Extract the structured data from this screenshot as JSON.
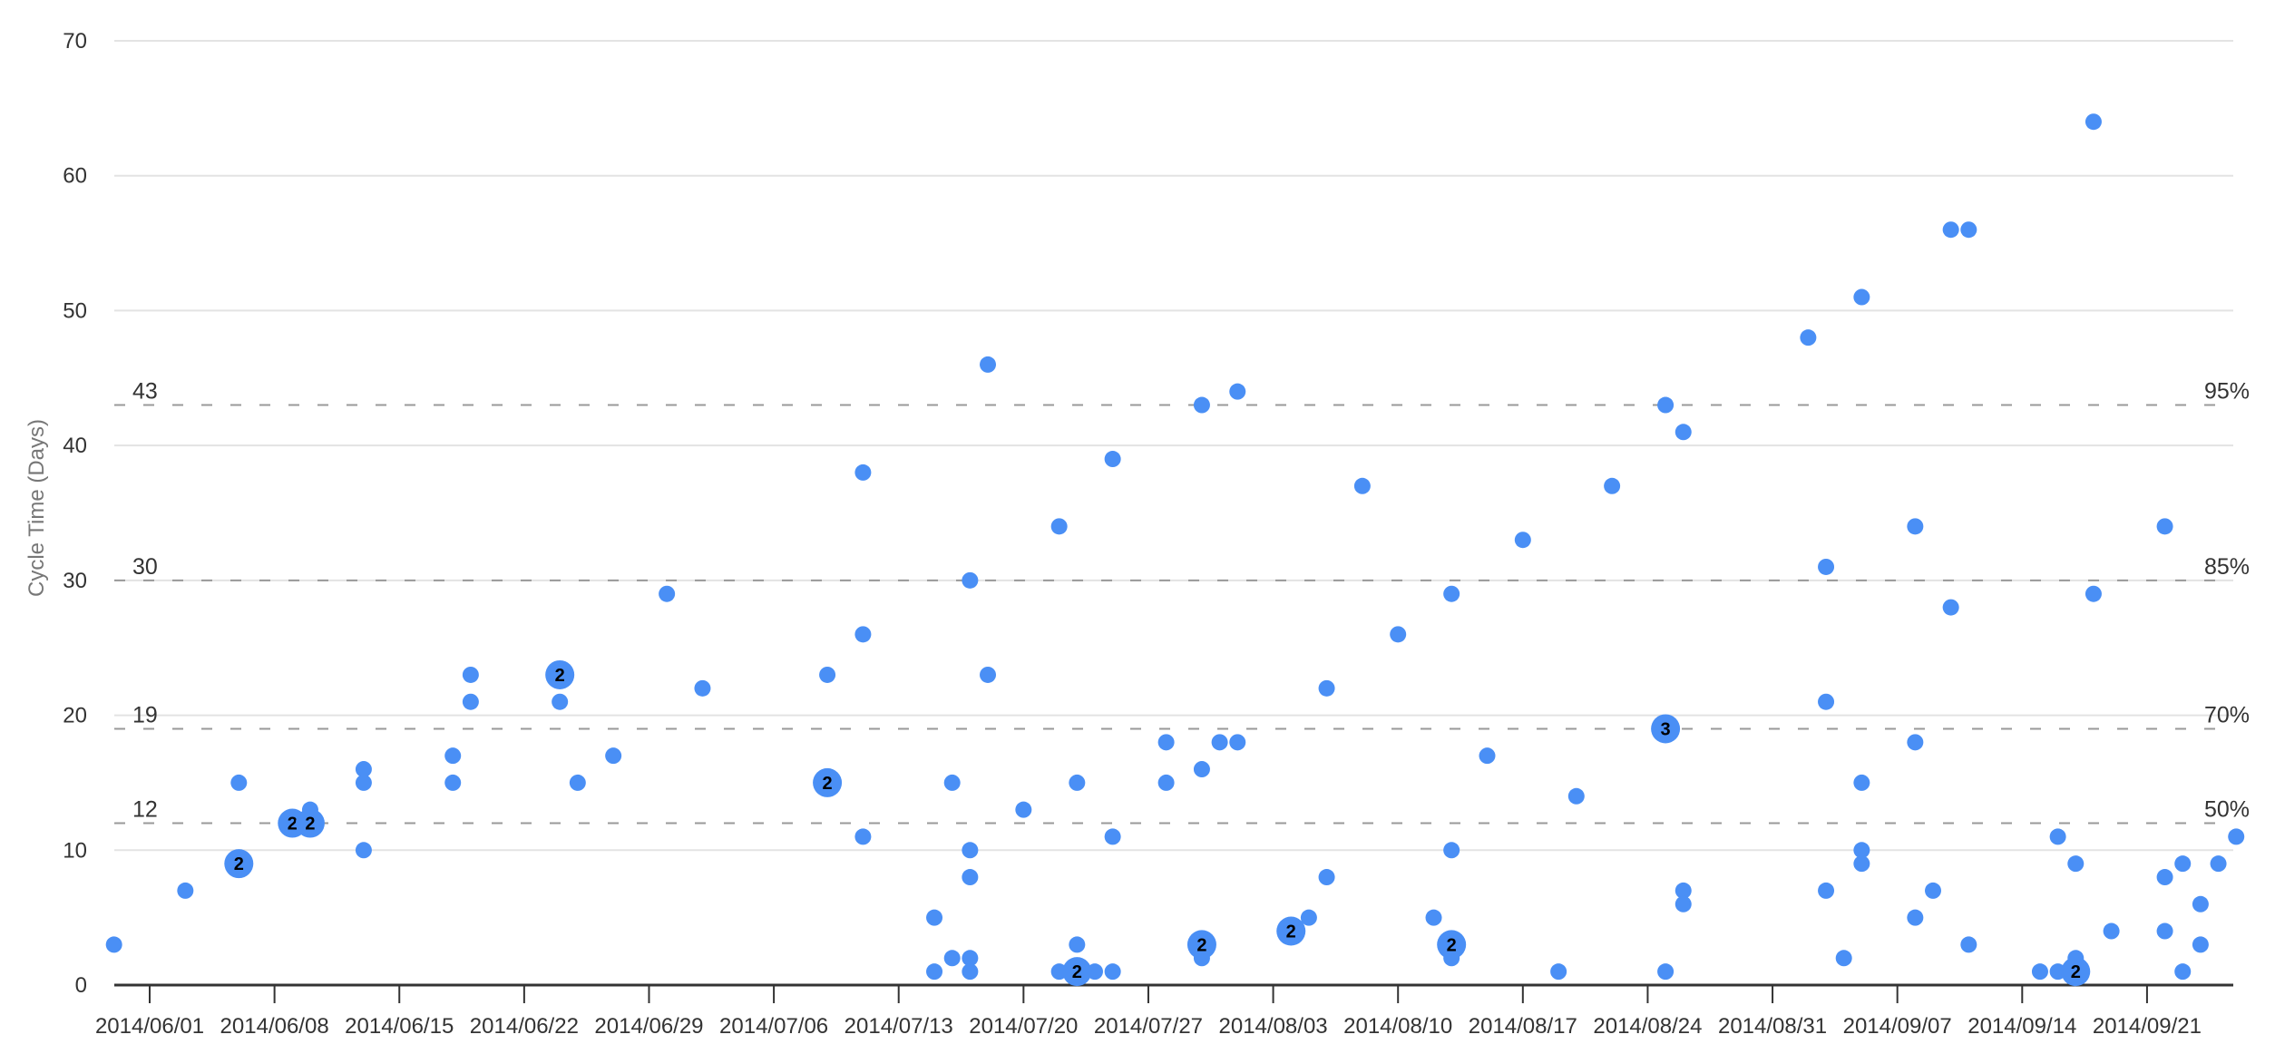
{
  "chart_data": {
    "type": "scatter",
    "title": "",
    "xlabel": "",
    "ylabel": "Cycle Time (Days)",
    "ylim": [
      0,
      70
    ],
    "y_ticks": [
      0,
      10,
      20,
      30,
      40,
      50,
      60,
      70
    ],
    "x_ticks": [
      "2014/06/01",
      "2014/06/08",
      "2014/06/15",
      "2014/06/22",
      "2014/06/29",
      "2014/07/06",
      "2014/07/13",
      "2014/07/20",
      "2014/07/27",
      "2014/08/03",
      "2014/08/10",
      "2014/08/17",
      "2014/08/24",
      "2014/08/31",
      "2014/09/07",
      "2014/09/14",
      "2014/09/21"
    ],
    "x_origin_date": "2014/06/01",
    "grid": true,
    "point_color": "#4a8ff5",
    "percentile_lines": [
      {
        "value": 43,
        "label": "95%"
      },
      {
        "value": 30,
        "label": "85%"
      },
      {
        "value": 19,
        "label": "70%"
      },
      {
        "value": 12,
        "label": "50%"
      }
    ],
    "points_note": "x = days offset from 2014/06/01, y = cycle time days, n = count of items at that point",
    "points": [
      {
        "x": -2,
        "y": 3,
        "n": 1
      },
      {
        "x": 2,
        "y": 7,
        "n": 1
      },
      {
        "x": 5,
        "y": 15,
        "n": 1
      },
      {
        "x": 5,
        "y": 9,
        "n": 2
      },
      {
        "x": 8,
        "y": 12,
        "n": 2
      },
      {
        "x": 9,
        "y": 13,
        "n": 1
      },
      {
        "x": 9,
        "y": 12,
        "n": 2
      },
      {
        "x": 12,
        "y": 16,
        "n": 1
      },
      {
        "x": 12,
        "y": 15,
        "n": 1
      },
      {
        "x": 12,
        "y": 10,
        "n": 1
      },
      {
        "x": 17,
        "y": 17,
        "n": 1
      },
      {
        "x": 17,
        "y": 15,
        "n": 1
      },
      {
        "x": 18,
        "y": 23,
        "n": 1
      },
      {
        "x": 18,
        "y": 21,
        "n": 1
      },
      {
        "x": 23,
        "y": 21,
        "n": 1
      },
      {
        "x": 23,
        "y": 23,
        "n": 2
      },
      {
        "x": 24,
        "y": 15,
        "n": 1
      },
      {
        "x": 26,
        "y": 17,
        "n": 1
      },
      {
        "x": 29,
        "y": 29,
        "n": 1
      },
      {
        "x": 31,
        "y": 22,
        "n": 1
      },
      {
        "x": 38,
        "y": 23,
        "n": 1
      },
      {
        "x": 38,
        "y": 15,
        "n": 2
      },
      {
        "x": 40,
        "y": 38,
        "n": 1
      },
      {
        "x": 40,
        "y": 26,
        "n": 1
      },
      {
        "x": 40,
        "y": 11,
        "n": 1
      },
      {
        "x": 44,
        "y": 5,
        "n": 1
      },
      {
        "x": 44,
        "y": 1,
        "n": 1
      },
      {
        "x": 45,
        "y": 15,
        "n": 1
      },
      {
        "x": 45,
        "y": 2,
        "n": 1
      },
      {
        "x": 46,
        "y": 30,
        "n": 1
      },
      {
        "x": 46,
        "y": 10,
        "n": 1
      },
      {
        "x": 46,
        "y": 8,
        "n": 1
      },
      {
        "x": 46,
        "y": 2,
        "n": 1
      },
      {
        "x": 46,
        "y": 1,
        "n": 1
      },
      {
        "x": 47,
        "y": 46,
        "n": 1
      },
      {
        "x": 47,
        "y": 23,
        "n": 1
      },
      {
        "x": 49,
        "y": 13,
        "n": 1
      },
      {
        "x": 51,
        "y": 34,
        "n": 1
      },
      {
        "x": 51,
        "y": 1,
        "n": 1
      },
      {
        "x": 52,
        "y": 15,
        "n": 1
      },
      {
        "x": 52,
        "y": 3,
        "n": 1
      },
      {
        "x": 53,
        "y": 1,
        "n": 1
      },
      {
        "x": 52,
        "y": 1,
        "n": 2
      },
      {
        "x": 54,
        "y": 39,
        "n": 1
      },
      {
        "x": 54,
        "y": 11,
        "n": 1
      },
      {
        "x": 54,
        "y": 1,
        "n": 1
      },
      {
        "x": 57,
        "y": 18,
        "n": 1
      },
      {
        "x": 57,
        "y": 15,
        "n": 1
      },
      {
        "x": 59,
        "y": 43,
        "n": 1
      },
      {
        "x": 59,
        "y": 16,
        "n": 1
      },
      {
        "x": 59,
        "y": 2,
        "n": 1
      },
      {
        "x": 59,
        "y": 3,
        "n": 2
      },
      {
        "x": 60,
        "y": 18,
        "n": 1
      },
      {
        "x": 61,
        "y": 18,
        "n": 1
      },
      {
        "x": 61,
        "y": 44,
        "n": 1
      },
      {
        "x": 64,
        "y": 4,
        "n": 2
      },
      {
        "x": 65,
        "y": 5,
        "n": 1
      },
      {
        "x": 66,
        "y": 22,
        "n": 1
      },
      {
        "x": 66,
        "y": 8,
        "n": 1
      },
      {
        "x": 68,
        "y": 37,
        "n": 1
      },
      {
        "x": 70,
        "y": 26,
        "n": 1
      },
      {
        "x": 72,
        "y": 5,
        "n": 1
      },
      {
        "x": 73,
        "y": 29,
        "n": 1
      },
      {
        "x": 73,
        "y": 10,
        "n": 1
      },
      {
        "x": 73,
        "y": 2,
        "n": 1
      },
      {
        "x": 73,
        "y": 3,
        "n": 2
      },
      {
        "x": 75,
        "y": 17,
        "n": 1
      },
      {
        "x": 77,
        "y": 33,
        "n": 1
      },
      {
        "x": 79,
        "y": 1,
        "n": 1
      },
      {
        "x": 80,
        "y": 14,
        "n": 1
      },
      {
        "x": 82,
        "y": 37,
        "n": 1
      },
      {
        "x": 85,
        "y": 43,
        "n": 1
      },
      {
        "x": 85,
        "y": 1,
        "n": 1
      },
      {
        "x": 85,
        "y": 19,
        "n": 3
      },
      {
        "x": 86,
        "y": 41,
        "n": 1
      },
      {
        "x": 86,
        "y": 7,
        "n": 1
      },
      {
        "x": 86,
        "y": 6,
        "n": 1
      },
      {
        "x": 93,
        "y": 48,
        "n": 1
      },
      {
        "x": 94,
        "y": 31,
        "n": 1
      },
      {
        "x": 94,
        "y": 21,
        "n": 1
      },
      {
        "x": 94,
        "y": 7,
        "n": 1
      },
      {
        "x": 95,
        "y": 2,
        "n": 1
      },
      {
        "x": 96,
        "y": 51,
        "n": 1
      },
      {
        "x": 96,
        "y": 15,
        "n": 1
      },
      {
        "x": 96,
        "y": 10,
        "n": 1
      },
      {
        "x": 96,
        "y": 9,
        "n": 1
      },
      {
        "x": 99,
        "y": 34,
        "n": 1
      },
      {
        "x": 99,
        "y": 18,
        "n": 1
      },
      {
        "x": 99,
        "y": 5,
        "n": 1
      },
      {
        "x": 100,
        "y": 7,
        "n": 1
      },
      {
        "x": 101,
        "y": 56,
        "n": 1
      },
      {
        "x": 101,
        "y": 28,
        "n": 1
      },
      {
        "x": 102,
        "y": 56,
        "n": 1
      },
      {
        "x": 102,
        "y": 3,
        "n": 1
      },
      {
        "x": 106,
        "y": 1,
        "n": 1
      },
      {
        "x": 107,
        "y": 11,
        "n": 1
      },
      {
        "x": 107,
        "y": 1,
        "n": 1
      },
      {
        "x": 108,
        "y": 9,
        "n": 1
      },
      {
        "x": 108,
        "y": 2,
        "n": 1
      },
      {
        "x": 108,
        "y": 1,
        "n": 2
      },
      {
        "x": 109,
        "y": 64,
        "n": 1
      },
      {
        "x": 109,
        "y": 29,
        "n": 1
      },
      {
        "x": 110,
        "y": 4,
        "n": 1
      },
      {
        "x": 113,
        "y": 34,
        "n": 1
      },
      {
        "x": 113,
        "y": 8,
        "n": 1
      },
      {
        "x": 113,
        "y": 4,
        "n": 1
      },
      {
        "x": 114,
        "y": 9,
        "n": 1
      },
      {
        "x": 114,
        "y": 1,
        "n": 1
      },
      {
        "x": 115,
        "y": 6,
        "n": 1
      },
      {
        "x": 115,
        "y": 3,
        "n": 1
      },
      {
        "x": 116,
        "y": 9,
        "n": 1
      },
      {
        "x": 117,
        "y": 11,
        "n": 1
      }
    ]
  }
}
